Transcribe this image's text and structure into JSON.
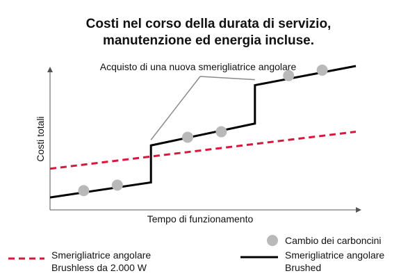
{
  "chart_data": {
    "type": "line",
    "title": [
      "Costi nel corso della durata di servizio,",
      "manutenzione ed energia incluse."
    ],
    "xlabel": "Tempo di funzionamento",
    "ylabel": "Costi totali",
    "annotation": "Acquisto di una nuova smerigliatrice angolare",
    "grid": false,
    "legend_position": "bottom",
    "xlim": [
      0,
      100
    ],
    "ylim": [
      0,
      100
    ],
    "series": [
      {
        "name": "Smerigliatrice angolare Brushless da 2.000 W",
        "legend_lines": [
          "Smerigliatrice angolare",
          "Brushless da 2.000 W"
        ],
        "style": "dashed",
        "color": "#d9163b",
        "points": [
          [
            0,
            25
          ],
          [
            100,
            52
          ]
        ]
      },
      {
        "name": "Smerigliatrice angolare Brushed",
        "legend_lines": [
          "Smerigliatrice angolare",
          "Brushed"
        ],
        "style": "solid",
        "color": "#000000",
        "points": [
          [
            0,
            4
          ],
          [
            33,
            15
          ],
          [
            33,
            42
          ],
          [
            67,
            58
          ],
          [
            67,
            86
          ],
          [
            100,
            100
          ]
        ]
      }
    ],
    "markers": {
      "name": "Cambio dei carboncini",
      "color": "#b9b9b9",
      "points": [
        [
          11,
          9
        ],
        [
          22,
          13
        ],
        [
          45,
          48
        ],
        [
          56,
          52
        ],
        [
          78,
          93
        ],
        [
          89,
          97
        ]
      ]
    },
    "annotation_targets": [
      [
        33,
        42
      ],
      [
        67,
        86
      ]
    ]
  }
}
